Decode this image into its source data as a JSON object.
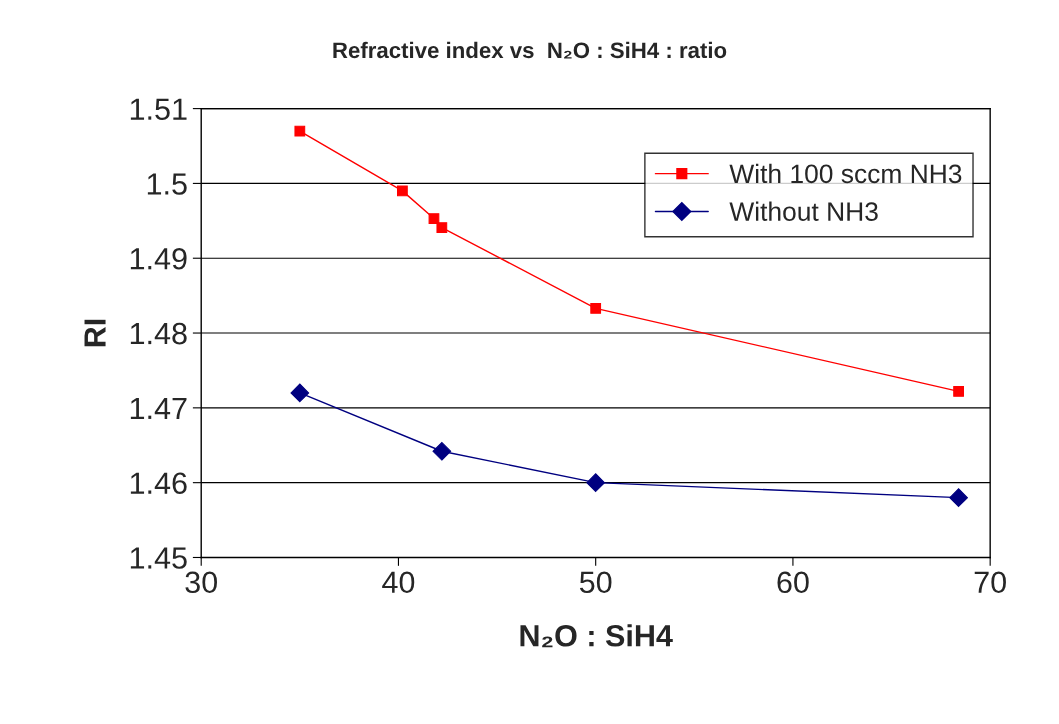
{
  "chart_data": {
    "type": "line",
    "title": "Refractive index vs  N₂O : SiH4 : ratio",
    "xlabel": "N₂O : SiH4",
    "ylabel": "RI",
    "xlim": [
      30,
      70
    ],
    "xticks": [
      30,
      40,
      50,
      60,
      70
    ],
    "ylim": [
      1.45,
      1.51
    ],
    "yticks": [
      1.45,
      1.46,
      1.47,
      1.48,
      1.49,
      {
        "value": 1.5,
        "label": "1.5"
      },
      1.51
    ],
    "grid": "y",
    "legend": "top right",
    "series": [
      {
        "name": "With 100 sccm NH3",
        "color": "#ff0000",
        "marker": "square",
        "x": [
          35.0,
          40.2,
          41.8,
          42.2,
          50.0,
          68.4
        ],
        "values": [
          1.507,
          1.499,
          1.4953,
          1.4941,
          1.4833,
          1.4722
        ]
      },
      {
        "name": "Without NH3",
        "color": "#000080",
        "marker": "diamond",
        "x": [
          35.0,
          42.2,
          50.0,
          68.4
        ],
        "values": [
          1.472,
          1.4642,
          1.46,
          1.458
        ]
      }
    ]
  }
}
